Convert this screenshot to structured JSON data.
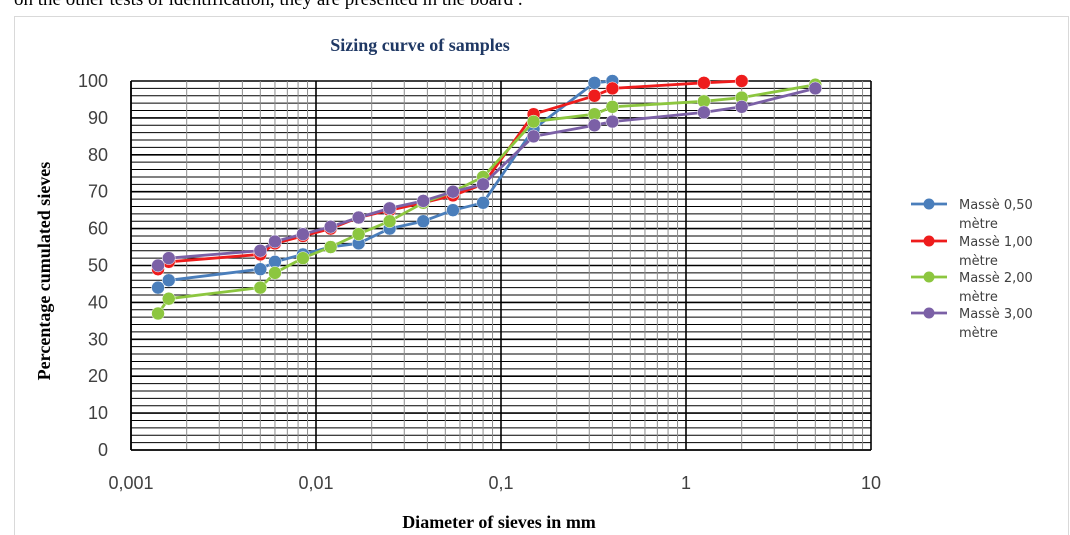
{
  "top_text": "on the other tests of identification, they are presented in the board .",
  "chart_data": {
    "type": "line",
    "title": "Sizing curve of samples",
    "xlabel": "Diameter of sieves in mm",
    "ylabel": "Percentage cumulated sieves",
    "x_scale": "log",
    "xlim": [
      0.001,
      10
    ],
    "ylim": [
      0,
      100
    ],
    "x_ticks": [
      "0,001",
      "0,01",
      "0,1",
      "1",
      "10"
    ],
    "y_ticks": [
      "0",
      "10",
      "20",
      "30",
      "40",
      "50",
      "60",
      "70",
      "80",
      "90",
      "100"
    ],
    "grid": true,
    "legend_position": "right",
    "series": [
      {
        "name_lines": [
          "Massè 0,50",
          "mètre"
        ],
        "color": "#4a7ebb",
        "x": [
          0.0014,
          0.0016,
          0.005,
          0.006,
          0.0085,
          0.012,
          0.017,
          0.025,
          0.038,
          0.055,
          0.08,
          0.15,
          0.32,
          0.4
        ],
        "y": [
          44,
          46,
          49,
          51,
          53,
          55,
          56,
          60,
          62,
          65,
          67,
          87,
          99.5,
          100
        ]
      },
      {
        "name_lines": [
          "Massè 1,00",
          "mètre"
        ],
        "color": "#ee1c1c",
        "x": [
          0.0014,
          0.0016,
          0.005,
          0.006,
          0.0085,
          0.012,
          0.017,
          0.025,
          0.038,
          0.055,
          0.08,
          0.15,
          0.32,
          0.4,
          1.25,
          2
        ],
        "y": [
          49,
          51,
          53,
          56,
          58,
          60,
          63,
          65,
          67,
          69,
          72,
          91,
          96,
          98,
          99.5,
          100
        ]
      },
      {
        "name_lines": [
          "Massè 2,00",
          "mètre"
        ],
        "color": "#8cc63f",
        "x": [
          0.0014,
          0.0016,
          0.005,
          0.006,
          0.0085,
          0.012,
          0.017,
          0.025,
          0.038,
          0.055,
          0.08,
          0.15,
          0.32,
          0.4,
          1.25,
          2,
          5
        ],
        "y": [
          37,
          41,
          44,
          48,
          52,
          55,
          58.5,
          62,
          67,
          70,
          74,
          89,
          91,
          93,
          94.5,
          95.5,
          99
        ]
      },
      {
        "name_lines": [
          "Massè 3,00",
          "mètre"
        ],
        "color": "#7b60a6",
        "x": [
          0.0014,
          0.0016,
          0.005,
          0.006,
          0.0085,
          0.012,
          0.017,
          0.025,
          0.038,
          0.055,
          0.08,
          0.15,
          0.32,
          0.4,
          1.25,
          2,
          5
        ],
        "y": [
          50,
          52,
          54,
          56.5,
          58.5,
          60.5,
          63,
          65.5,
          67.5,
          70,
          72,
          85,
          88,
          89,
          91.5,
          93,
          98
        ]
      }
    ]
  }
}
